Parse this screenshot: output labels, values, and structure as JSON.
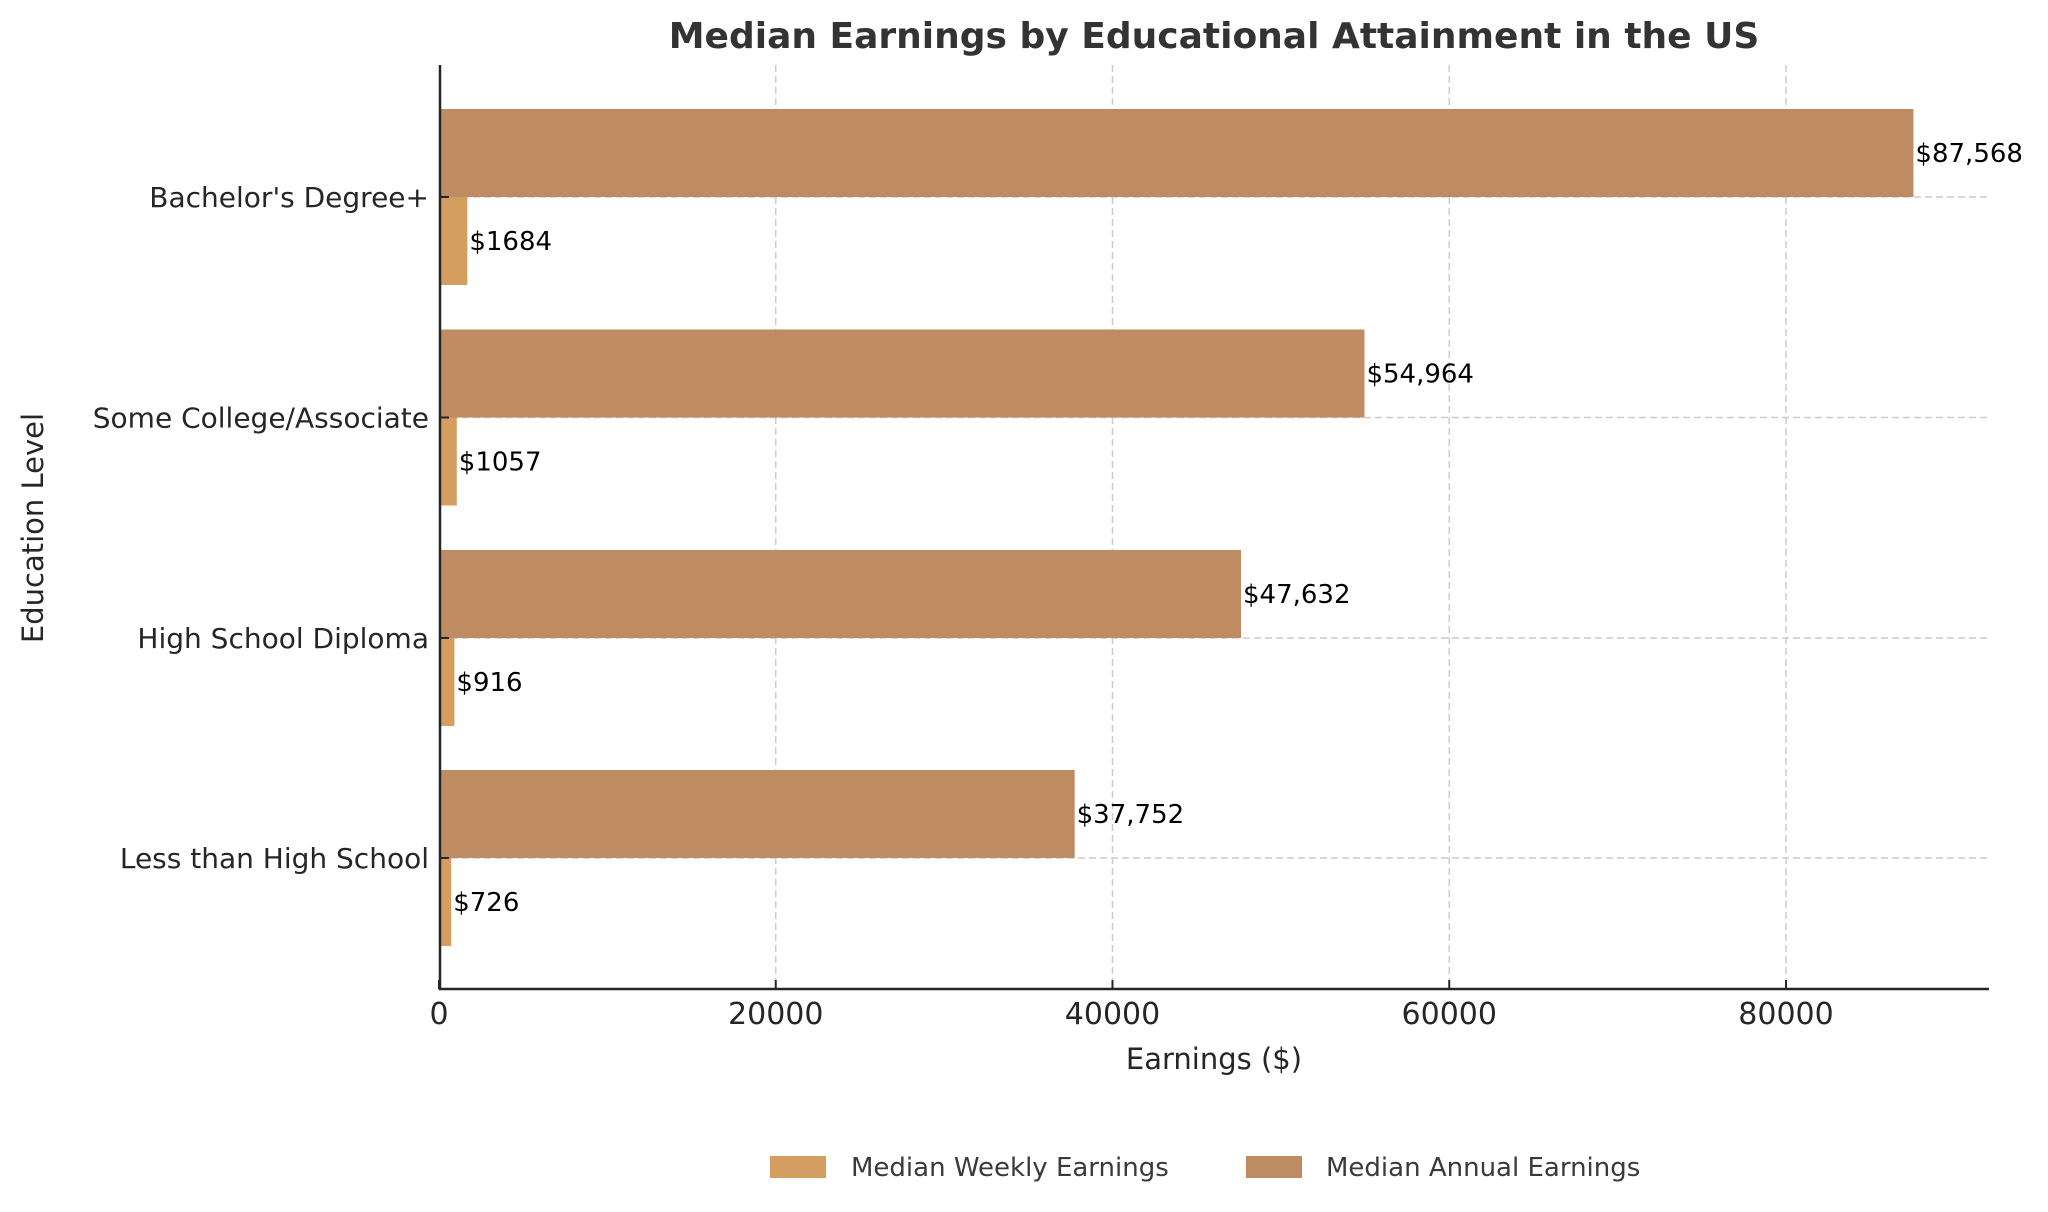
{
  "chart_data": {
    "type": "bar",
    "orientation": "horizontal",
    "title": "Median Earnings by Educational Attainment in the US",
    "xlabel": "Earnings ($)",
    "ylabel": "Education Level",
    "categories": [
      "Bachelor's Degree+",
      "Some College/Associate",
      "High School Diploma",
      "Less than High School"
    ],
    "series": [
      {
        "name": "Median Weekly Earnings",
        "color": "#D59E61",
        "values": [
          1684,
          1057,
          916,
          726
        ],
        "labels": [
          "$1684",
          "$1057",
          "$916",
          "$726"
        ]
      },
      {
        "name": "Median Annual Earnings",
        "color": "#BF8B62",
        "values": [
          87568,
          54964,
          47632,
          37752
        ],
        "labels": [
          "$87,568",
          "$54,964",
          "$47,632",
          "$37,752"
        ]
      }
    ],
    "xlim": [
      0,
      92000
    ],
    "xticks": [
      0,
      20000,
      40000,
      60000,
      80000
    ],
    "xtick_labels": [
      "0",
      "20000",
      "40000",
      "60000",
      "80000"
    ],
    "grid": true,
    "legend_position": "bottom-center"
  }
}
